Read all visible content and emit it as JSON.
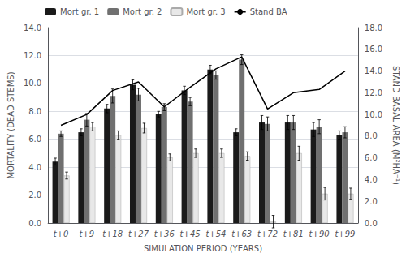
{
  "chart_data": {
    "type": "bar",
    "xlabel": "SIMULATION PERIOD (YEARS)",
    "ylabel": "MORTALITY (DEAD STEMS)",
    "y2label": "STAND BASAL AREA (M²HA⁻¹)",
    "categories": [
      "t+0",
      "t+9",
      "t+18",
      "t+27",
      "t+36",
      "t+45",
      "t+54",
      "t+63",
      "t+72",
      "t+81",
      "t+90",
      "t+99"
    ],
    "series": [
      {
        "name": "Mort gr. 1",
        "type": "bar",
        "color": "#1a1a1a",
        "values": [
          4.4,
          6.5,
          8.2,
          9.9,
          7.8,
          9.5,
          11.0,
          6.5,
          7.2,
          7.2,
          6.7,
          6.3
        ],
        "errors": [
          0.25,
          0.25,
          0.3,
          0.35,
          0.2,
          0.3,
          0.3,
          0.25,
          0.5,
          0.5,
          0.5,
          0.3
        ]
      },
      {
        "name": "Mort gr. 2",
        "type": "bar",
        "color": "#707070",
        "values": [
          6.4,
          7.4,
          9.1,
          9.2,
          8.3,
          8.7,
          10.6,
          11.7,
          7.1,
          7.2,
          6.9,
          6.5
        ],
        "errors": [
          0.2,
          0.45,
          0.5,
          0.45,
          0.25,
          0.3,
          0.3,
          0.35,
          0.5,
          0.5,
          0.5,
          0.4
        ]
      },
      {
        "name": "Mort gr. 3",
        "type": "bar",
        "color": "#e8e8e8",
        "values": [
          3.4,
          6.9,
          6.3,
          6.8,
          4.7,
          5.0,
          5.0,
          4.8,
          0.1,
          5.0,
          2.1,
          2.1
        ],
        "errors": [
          0.25,
          0.3,
          0.3,
          0.35,
          0.25,
          0.3,
          0.3,
          0.3,
          0.45,
          0.5,
          0.45,
          0.4
        ]
      },
      {
        "name": "Stand BA",
        "type": "line",
        "axis": "y2",
        "color": "#000000",
        "values": [
          9.0,
          10.0,
          12.2,
          13.0,
          10.7,
          12.5,
          14.2,
          15.3,
          10.5,
          12.0,
          12.3,
          14.0
        ]
      }
    ],
    "ylim": [
      0.0,
      14.0
    ],
    "yticks": [
      {
        "value": 0,
        "label": "0.0"
      },
      {
        "value": 2,
        "label": "2.0"
      },
      {
        "value": 4,
        "label": "4.0"
      },
      {
        "value": 6,
        "label": "6.0"
      },
      {
        "value": 8,
        "label": "8.0"
      },
      {
        "value": 10,
        "label": "10.0"
      },
      {
        "value": 12,
        "label": "12.0"
      },
      {
        "value": 14,
        "label": "14.0"
      }
    ],
    "y2lim": [
      0.0,
      18.0
    ],
    "y2ticks": [
      {
        "value": 0,
        "label": "0.0"
      },
      {
        "value": 2,
        "label": "2.0"
      },
      {
        "value": 4,
        "label": "4.0"
      },
      {
        "value": 6,
        "label": "6.0"
      },
      {
        "value": 8,
        "label": "8.0"
      },
      {
        "value": 10,
        "label": "10.0"
      },
      {
        "value": 12,
        "label": "12.0"
      },
      {
        "value": 14,
        "label": "14.0"
      },
      {
        "value": 16,
        "label": "16.0"
      },
      {
        "value": 18,
        "label": "18.0"
      }
    ],
    "grid": true,
    "legend": "upper left"
  }
}
